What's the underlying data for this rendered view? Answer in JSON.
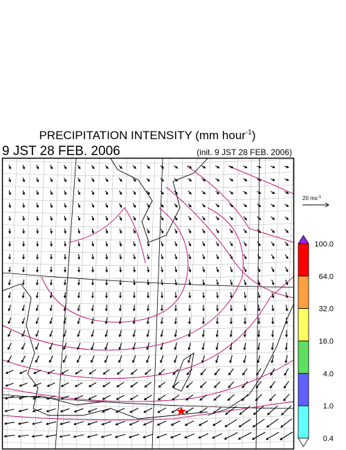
{
  "header": {
    "title": "PRECIPITATION INTENSITY (mm hour",
    "title_exponent": "-1",
    "title_close": ")",
    "valid_time": "9 JST 28 FEB. 2006",
    "init_time": "(init. 9 JST 28 FEB. 2006)"
  },
  "vector_legend": {
    "label": "20 ms",
    "exponent": "-1"
  },
  "colorbar": {
    "over_color": "#a020f0",
    "under_color": "#ffffff",
    "segments": [
      "#ff0000",
      "#ffa040",
      "#ffff60",
      "#60e060",
      "#6060ff",
      "#60ffff"
    ],
    "labels": [
      "100.0",
      "64.0",
      "32.0",
      "16.0",
      "4.0",
      "1.0",
      "0.4"
    ]
  }
}
